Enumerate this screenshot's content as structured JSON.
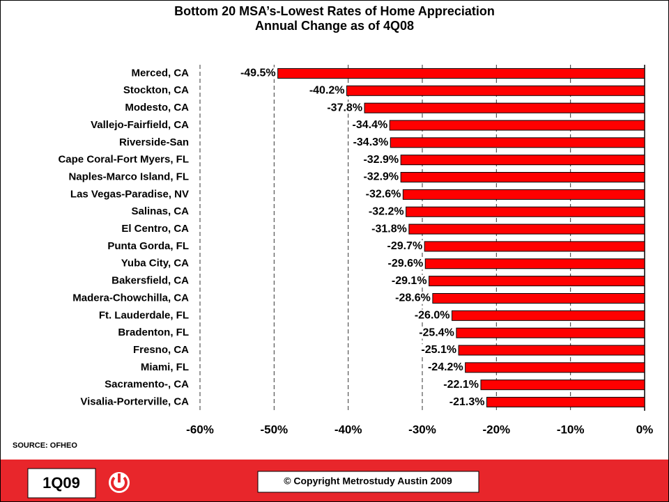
{
  "chart_data": {
    "type": "hbar",
    "title": "Bottom 20 MSA’s-Lowest Rates of Home Appreciation",
    "subtitle": "Annual Change as of 4Q08",
    "categories": [
      "Merced, CA",
      "Stockton, CA",
      "Modesto, CA",
      "Vallejo-Fairfield, CA",
      "Riverside-San",
      "Cape Coral-Fort Myers, FL",
      "Naples-Marco Island, FL",
      "Las Vegas-Paradise, NV",
      "Salinas, CA",
      "El Centro, CA",
      "Punta Gorda, FL",
      "Yuba City, CA",
      "Bakersfield, CA",
      "Madera-Chowchilla, CA",
      "Ft. Lauderdale, FL",
      "Bradenton, FL",
      "Fresno, CA",
      "Miami, FL",
      "Sacramento-, CA",
      "Visalia-Porterville, CA"
    ],
    "values": [
      -49.5,
      -40.2,
      -37.8,
      -34.4,
      -34.3,
      -32.9,
      -32.9,
      -32.6,
      -32.2,
      -31.8,
      -29.7,
      -29.6,
      -29.1,
      -28.6,
      -26.0,
      -25.4,
      -25.1,
      -24.2,
      -22.1,
      -21.3
    ],
    "value_labels": [
      "-49.5%",
      "-40.2%",
      "-37.8%",
      "-34.4%",
      "-34.3%",
      "-32.9%",
      "-32.9%",
      "-32.6%",
      "-32.2%",
      "-31.8%",
      "-29.7%",
      "-29.6%",
      "-29.1%",
      "-28.6%",
      "-26.0%",
      "-25.4%",
      "-25.1%",
      "-24.2%",
      "-22.1%",
      "-21.3%"
    ],
    "color": "#ff0000",
    "xlim": [
      -60,
      0
    ],
    "xticks": [
      {
        "value": -60,
        "label": "-60%"
      },
      {
        "value": -50,
        "label": "-50%"
      },
      {
        "value": -40,
        "label": "-40%"
      },
      {
        "value": -30,
        "label": "-30%"
      },
      {
        "value": -20,
        "label": "-20%"
      },
      {
        "value": -10,
        "label": "-10%"
      },
      {
        "value": 0,
        "label": "0%"
      }
    ],
    "grid": true,
    "source": "SOURCE: OFHEO"
  },
  "footer": {
    "badge": "1Q09",
    "copyright": "© Copyright Metrostudy Austin 2009"
  }
}
